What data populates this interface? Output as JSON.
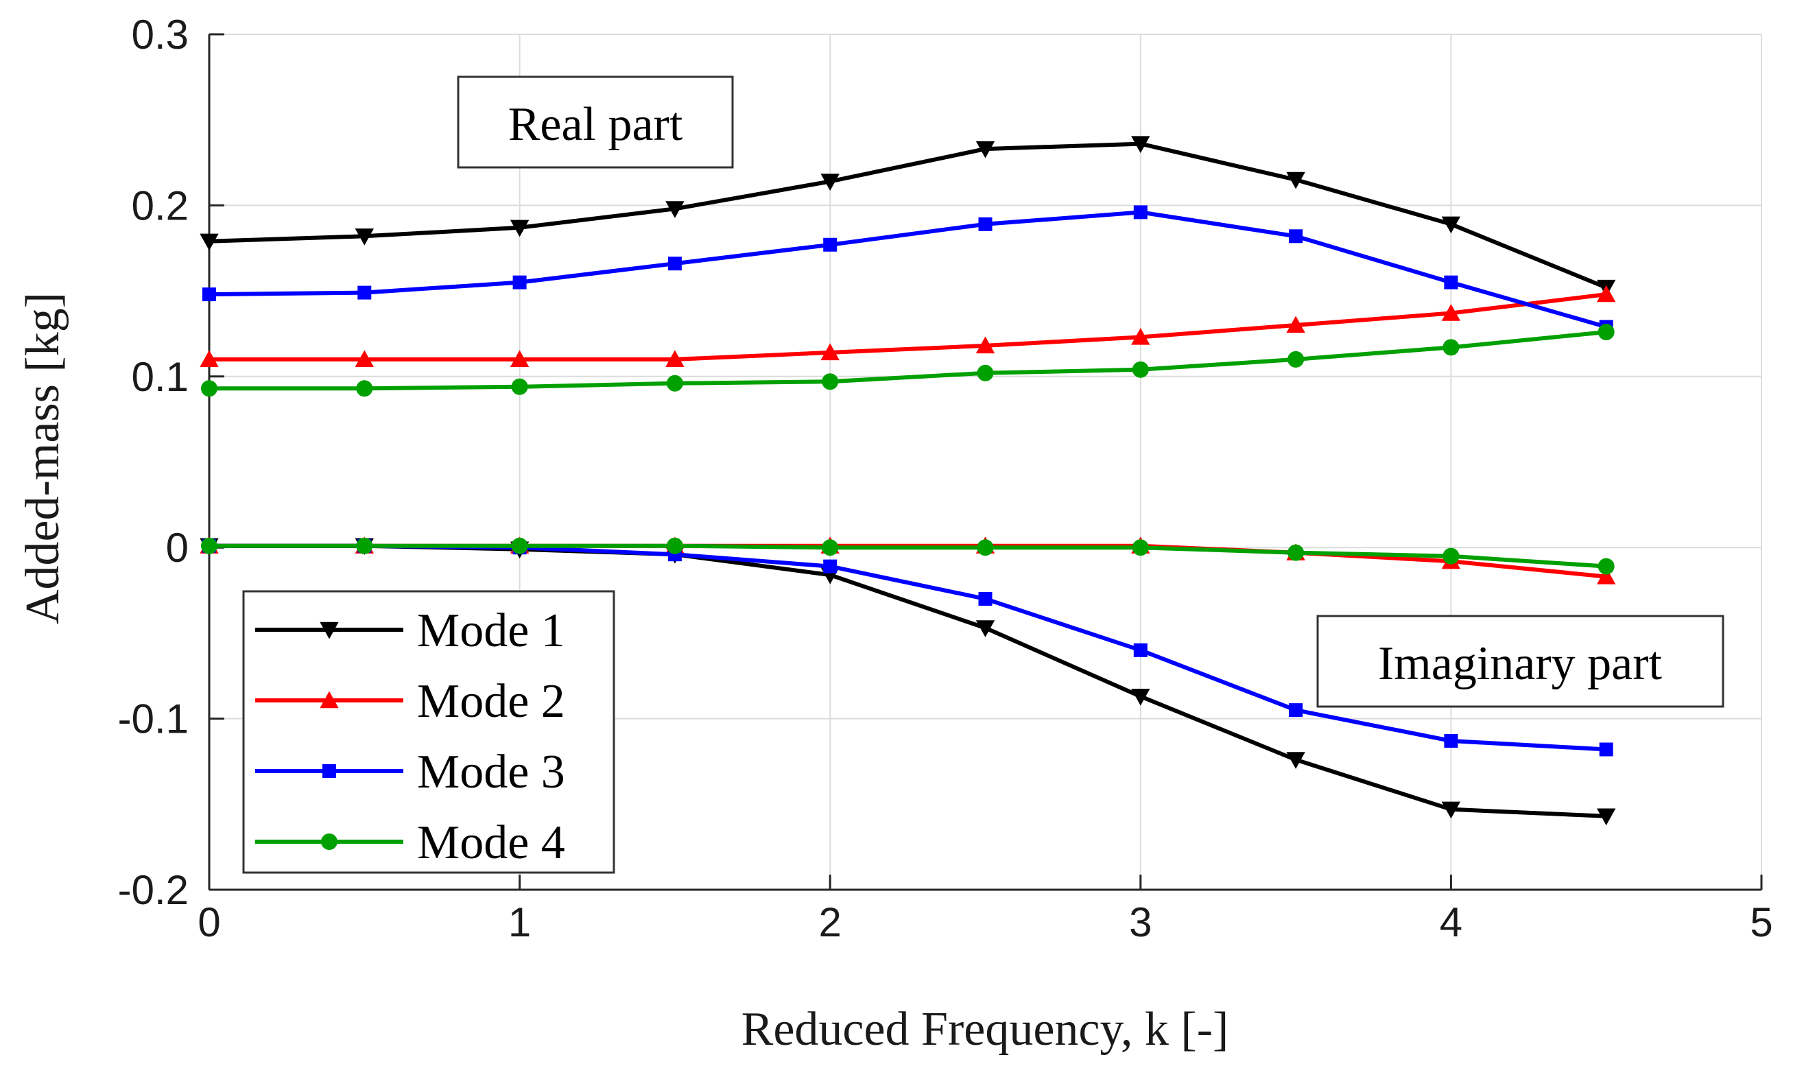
{
  "chart_data": {
    "type": "line",
    "title": "",
    "xlabel": "Reduced Frequency, k [-]",
    "ylabel": "Added-mass [kg]",
    "xlim": [
      0,
      5
    ],
    "ylim": [
      -0.2,
      0.3
    ],
    "xticks": [
      0,
      1,
      2,
      3,
      4,
      5
    ],
    "xtick_labels": [
      "0",
      "1",
      "2",
      "3",
      "4",
      "5"
    ],
    "yticks": [
      -0.2,
      -0.1,
      0,
      0.1,
      0.2,
      0.3
    ],
    "ytick_labels": [
      "-0.2",
      "-0.1",
      "0",
      "0.1",
      "0.2",
      "0.3"
    ],
    "grid": true,
    "legend_position": "bottom-left",
    "annotations": [
      {
        "text": "Real part",
        "x": 1.25,
        "y": 0.25
      },
      {
        "text": "Imaginary part",
        "x": 4.2,
        "y": -0.067
      }
    ],
    "x": [
      0,
      0.5,
      1,
      1.5,
      2,
      2.5,
      3,
      3.5,
      4,
      4.5
    ],
    "series": [
      {
        "name": "Mode 1",
        "part": "Real part",
        "color": "#000000",
        "marker": "triangle-down",
        "values": [
          0.179,
          0.182,
          0.187,
          0.198,
          0.214,
          0.233,
          0.236,
          0.215,
          0.189,
          0.152
        ]
      },
      {
        "name": "Mode 2",
        "part": "Real part",
        "color": "#ff0000",
        "marker": "triangle-up",
        "values": [
          0.11,
          0.11,
          0.11,
          0.11,
          0.114,
          0.118,
          0.123,
          0.13,
          0.137,
          0.148
        ]
      },
      {
        "name": "Mode 3",
        "part": "Real part",
        "color": "#0000ff",
        "marker": "square",
        "values": [
          0.148,
          0.149,
          0.155,
          0.166,
          0.177,
          0.189,
          0.196,
          0.182,
          0.155,
          0.129
        ]
      },
      {
        "name": "Mode 4",
        "part": "Real part",
        "color": "#00a000",
        "marker": "circle",
        "values": [
          0.093,
          0.093,
          0.094,
          0.096,
          0.097,
          0.102,
          0.104,
          0.11,
          0.117,
          0.126
        ]
      },
      {
        "name": "Mode 1",
        "part": "Imaginary part",
        "color": "#000000",
        "marker": "triangle-down",
        "values": [
          0.001,
          0.001,
          -0.001,
          -0.004,
          -0.016,
          -0.047,
          -0.087,
          -0.124,
          -0.153,
          -0.157
        ]
      },
      {
        "name": "Mode 2",
        "part": "Imaginary part",
        "color": "#ff0000",
        "marker": "triangle-up",
        "values": [
          0.001,
          0.001,
          0.001,
          0.001,
          0.001,
          0.001,
          0.001,
          -0.003,
          -0.008,
          -0.017
        ]
      },
      {
        "name": "Mode 3",
        "part": "Imaginary part",
        "color": "#0000ff",
        "marker": "square",
        "values": [
          0.001,
          0.001,
          0.0,
          -0.004,
          -0.011,
          -0.03,
          -0.06,
          -0.095,
          -0.113,
          -0.118
        ]
      },
      {
        "name": "Mode 4",
        "part": "Imaginary part",
        "color": "#00a000",
        "marker": "circle",
        "values": [
          0.001,
          0.001,
          0.001,
          0.001,
          0.0,
          0.0,
          0.0,
          -0.003,
          -0.005,
          -0.011
        ]
      }
    ],
    "legend": [
      {
        "label": "Mode 1",
        "color": "#000000",
        "marker": "triangle-down"
      },
      {
        "label": "Mode 2",
        "color": "#ff0000",
        "marker": "triangle-up"
      },
      {
        "label": "Mode 3",
        "color": "#0000ff",
        "marker": "square"
      },
      {
        "label": "Mode 4",
        "color": "#00a000",
        "marker": "circle"
      }
    ]
  }
}
